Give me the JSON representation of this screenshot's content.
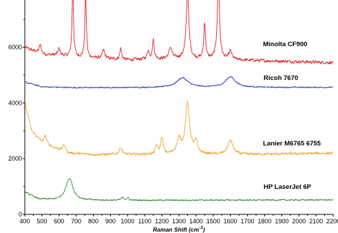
{
  "chart_data": {
    "type": "line",
    "xlabel_text": "Raman Shift (cm",
    "xlabel_sup": "-1",
    "xlabel_close": ")",
    "xlim": [
      400,
      2200
    ],
    "ylim": [
      0,
      7500
    ],
    "x_ticks": [
      400,
      500,
      600,
      700,
      800,
      900,
      1000,
      1100,
      1200,
      1300,
      1400,
      1500,
      1600,
      1700,
      1800,
      1900,
      2000,
      2100,
      2200
    ],
    "y_ticks": [
      0,
      2000,
      4000,
      6000
    ],
    "grid": false,
    "series": [
      {
        "name": "Minolta CF900",
        "color": "#e02020",
        "baseline": 5500,
        "noise": 80,
        "baseline_points": [
          [
            400,
            6000
          ],
          [
            500,
            5750
          ],
          [
            700,
            5650
          ],
          [
            1000,
            5550
          ],
          [
            1300,
            5600
          ],
          [
            1600,
            5550
          ],
          [
            2200,
            5450
          ]
        ],
        "peaks": [
          [
            490,
            300,
            8
          ],
          [
            600,
            250,
            8
          ],
          [
            680,
            2500,
            5
          ],
          [
            755,
            2300,
            5
          ],
          [
            860,
            300,
            8
          ],
          [
            960,
            400,
            6
          ],
          [
            1120,
            300,
            8
          ],
          [
            1150,
            700,
            6
          ],
          [
            1250,
            400,
            10
          ],
          [
            1350,
            2400,
            9
          ],
          [
            1450,
            1300,
            6
          ],
          [
            1530,
            2700,
            8
          ],
          [
            1600,
            300,
            10
          ]
        ]
      },
      {
        "name": "Ricoh 7670",
        "color": "#2c2cb0",
        "baseline": 4550,
        "noise": 30,
        "baseline_points": [
          [
            400,
            4750
          ],
          [
            500,
            4580
          ],
          [
            700,
            4550
          ],
          [
            2200,
            4560
          ]
        ],
        "peaks": [
          [
            1320,
            350,
            40
          ],
          [
            1600,
            380,
            35
          ]
        ]
      },
      {
        "name": "Lanier M6765 6755",
        "color": "#f0a030",
        "baseline": 2150,
        "noise": 60,
        "baseline_points": [
          [
            400,
            4000
          ],
          [
            440,
            3000
          ],
          [
            500,
            2600
          ],
          [
            570,
            2400
          ],
          [
            650,
            2200
          ],
          [
            800,
            2150
          ],
          [
            1200,
            2150
          ],
          [
            1700,
            2150
          ],
          [
            2200,
            2200
          ]
        ],
        "peaks": [
          [
            520,
            300,
            8
          ],
          [
            630,
            250,
            10
          ],
          [
            960,
            250,
            10
          ],
          [
            1170,
            300,
            8
          ],
          [
            1200,
            600,
            8
          ],
          [
            1300,
            500,
            15
          ],
          [
            1350,
            1800,
            15
          ],
          [
            1400,
            400,
            12
          ],
          [
            1600,
            500,
            18
          ]
        ]
      },
      {
        "name": "HP LaserJet 6P",
        "color": "#2a8a2a",
        "baseline": 500,
        "noise": 35,
        "baseline_points": [
          [
            400,
            800
          ],
          [
            480,
            550
          ],
          [
            600,
            500
          ],
          [
            2200,
            520
          ]
        ],
        "peaks": [
          [
            660,
            800,
            25
          ],
          [
            970,
            100,
            8
          ],
          [
            1000,
            80,
            8
          ]
        ]
      }
    ]
  }
}
